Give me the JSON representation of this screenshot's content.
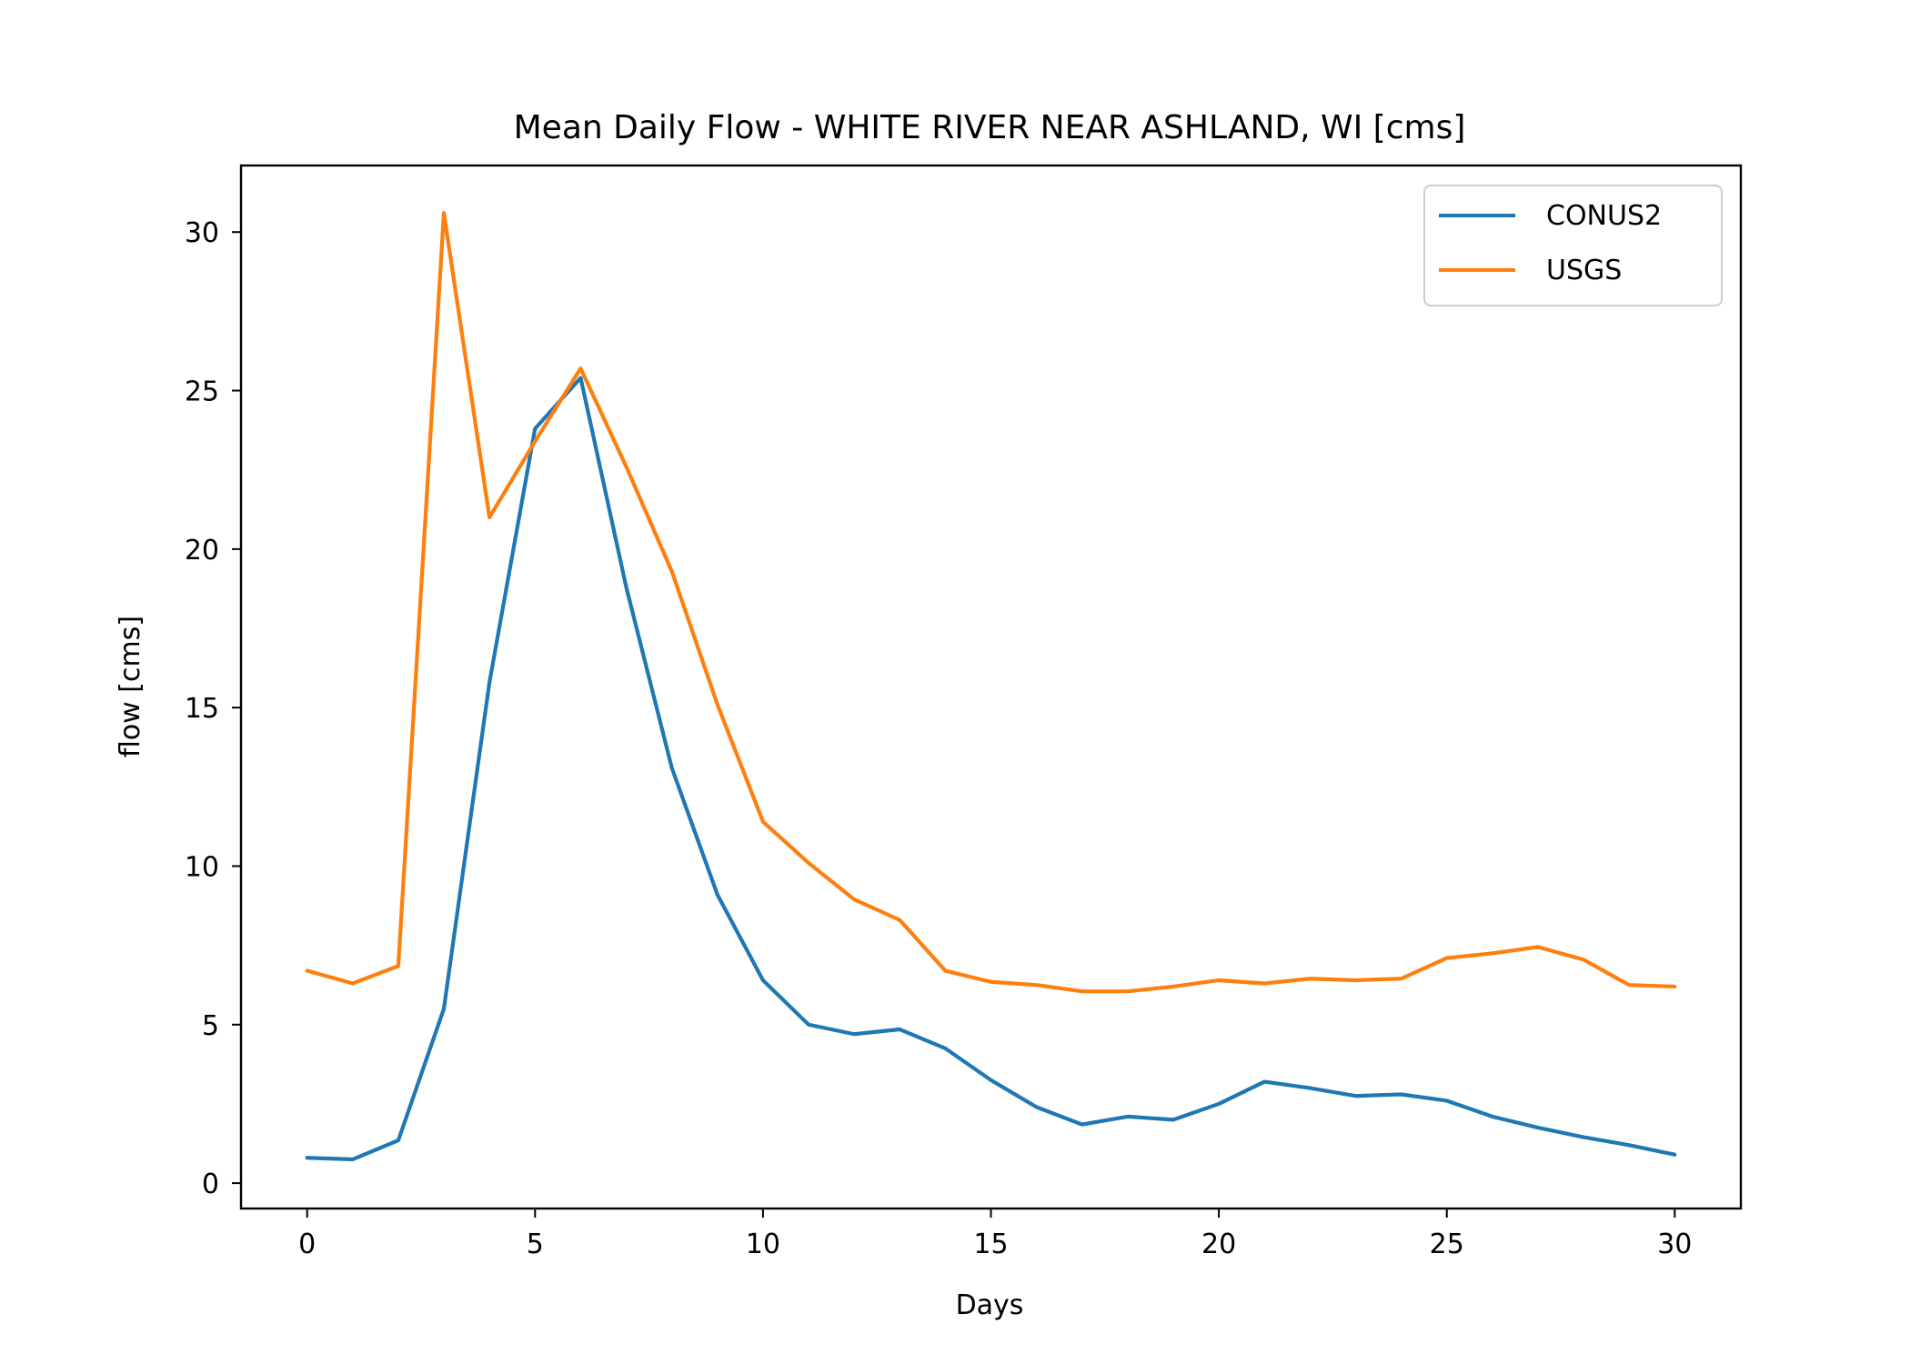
{
  "chart_data": {
    "type": "line",
    "title": "Mean Daily Flow - WHITE RIVER NEAR ASHLAND, WI [cms]",
    "xlabel": "Days",
    "ylabel": "flow [cms]",
    "xlim": [
      -1.45,
      31.45
    ],
    "ylim": [
      -0.8,
      32.1
    ],
    "xticks": [
      0,
      5,
      10,
      15,
      20,
      25,
      30
    ],
    "yticks": [
      0,
      5,
      10,
      15,
      20,
      25,
      30
    ],
    "grid": false,
    "legend_position": "top-right",
    "x": [
      0,
      1,
      2,
      3,
      4,
      5,
      6,
      7,
      8,
      9,
      10,
      11,
      12,
      13,
      14,
      15,
      16,
      17,
      18,
      19,
      20,
      21,
      22,
      23,
      24,
      25,
      26,
      27,
      28,
      29,
      30
    ],
    "series": [
      {
        "name": "CONUS2",
        "color": "#1f77b4",
        "values": [
          0.8,
          0.75,
          1.35,
          5.5,
          15.8,
          23.8,
          25.4,
          18.8,
          13.1,
          9.1,
          6.4,
          5.0,
          4.7,
          4.85,
          4.25,
          3.25,
          2.4,
          1.85,
          2.1,
          2.0,
          2.5,
          3.2,
          3.0,
          2.75,
          2.8,
          2.6,
          2.1,
          1.75,
          1.45,
          1.2,
          0.9
        ]
      },
      {
        "name": "USGS",
        "color": "#ff7f0e",
        "values": [
          6.7,
          6.3,
          6.85,
          30.6,
          21.0,
          23.4,
          25.7,
          22.6,
          19.3,
          15.1,
          11.4,
          10.1,
          8.95,
          8.3,
          6.7,
          6.35,
          6.25,
          6.05,
          6.05,
          6.2,
          6.4,
          6.3,
          6.45,
          6.4,
          6.45,
          7.1,
          7.25,
          7.45,
          7.05,
          6.25,
          6.2
        ]
      }
    ]
  }
}
